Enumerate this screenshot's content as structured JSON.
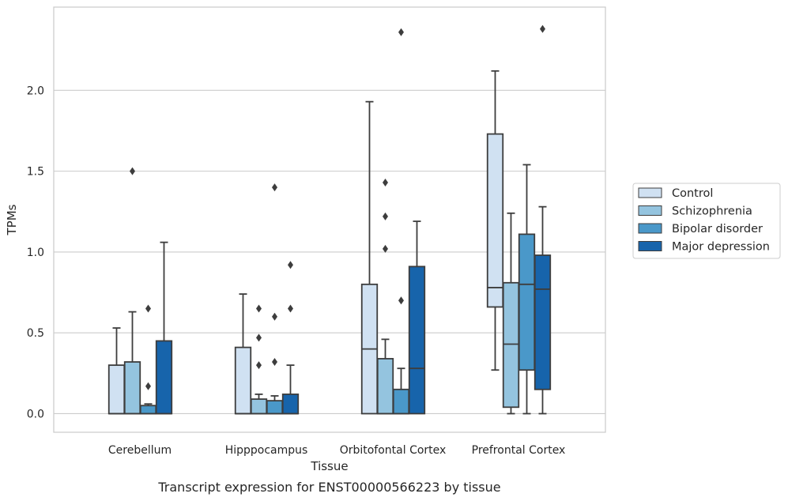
{
  "chart_data": {
    "type": "box",
    "title": "",
    "caption": "Transcript expression for ENST00000566223 by tissue",
    "xlabel": "Tissue",
    "ylabel": "TPMs",
    "ylim": [
      -0.115,
      2.515
    ],
    "yticks": [
      0.0,
      0.5,
      1.0,
      1.5,
      2.0
    ],
    "ytick_labels": [
      "0.0",
      "0.5",
      "1.0",
      "1.5",
      "2.0"
    ],
    "grid": "horizontal",
    "legend_position": "right",
    "categories": [
      "Cerebellum",
      "Hipppocampus",
      "Orbitofontal Cortex",
      "Prefrontal Cortex"
    ],
    "series": [
      {
        "name": "Control",
        "color": "#d0e1f2",
        "boxes": [
          {
            "whislo": 0.0,
            "q1": 0.0,
            "med": 0.0,
            "q3": 0.3,
            "whishi": 0.53,
            "fliers": []
          },
          {
            "whislo": 0.0,
            "q1": 0.0,
            "med": 0.0,
            "q3": 0.41,
            "whishi": 0.74,
            "fliers": []
          },
          {
            "whislo": 0.0,
            "q1": 0.0,
            "med": 0.4,
            "q3": 0.8,
            "whishi": 1.93,
            "fliers": []
          },
          {
            "whislo": 0.27,
            "q1": 0.66,
            "med": 0.78,
            "q3": 1.73,
            "whishi": 2.12,
            "fliers": []
          }
        ]
      },
      {
        "name": "Schizophrenia",
        "color": "#94c4df",
        "boxes": [
          {
            "whislo": 0.0,
            "q1": 0.0,
            "med": 0.0,
            "q3": 0.32,
            "whishi": 0.63,
            "fliers": [
              1.5
            ]
          },
          {
            "whislo": 0.0,
            "q1": 0.0,
            "med": 0.0,
            "q3": 0.09,
            "whishi": 0.12,
            "fliers": [
              0.3,
              0.47,
              0.65
            ]
          },
          {
            "whislo": 0.0,
            "q1": 0.0,
            "med": 0.0,
            "q3": 0.34,
            "whishi": 0.46,
            "fliers": [
              1.02,
              1.22,
              1.43
            ]
          },
          {
            "whislo": 0.0,
            "q1": 0.04,
            "med": 0.43,
            "q3": 0.81,
            "whishi": 1.24,
            "fliers": []
          }
        ]
      },
      {
        "name": "Bipolar disorder",
        "color": "#4a98c9",
        "boxes": [
          {
            "whislo": 0.0,
            "q1": 0.0,
            "med": 0.0,
            "q3": 0.05,
            "whishi": 0.06,
            "fliers": [
              0.17,
              0.65
            ]
          },
          {
            "whislo": 0.0,
            "q1": 0.0,
            "med": 0.0,
            "q3": 0.08,
            "whishi": 0.11,
            "fliers": [
              0.32,
              0.6,
              1.4
            ]
          },
          {
            "whislo": 0.0,
            "q1": 0.0,
            "med": 0.0,
            "q3": 0.15,
            "whishi": 0.28,
            "fliers": [
              0.7,
              2.36
            ]
          },
          {
            "whislo": 0.0,
            "q1": 0.27,
            "med": 0.8,
            "q3": 1.11,
            "whishi": 1.54,
            "fliers": []
          }
        ]
      },
      {
        "name": "Major depression",
        "color": "#1764ab",
        "boxes": [
          {
            "whislo": 0.0,
            "q1": 0.0,
            "med": 0.0,
            "q3": 0.45,
            "whishi": 1.06,
            "fliers": []
          },
          {
            "whislo": 0.0,
            "q1": 0.0,
            "med": 0.0,
            "q3": 0.12,
            "whishi": 0.3,
            "fliers": [
              0.65,
              0.92
            ]
          },
          {
            "whislo": 0.0,
            "q1": 0.0,
            "med": 0.28,
            "q3": 0.91,
            "whishi": 1.19,
            "fliers": []
          },
          {
            "whislo": 0.0,
            "q1": 0.15,
            "med": 0.77,
            "q3": 0.98,
            "whishi": 1.28,
            "fliers": [
              2.38
            ]
          }
        ]
      }
    ]
  }
}
